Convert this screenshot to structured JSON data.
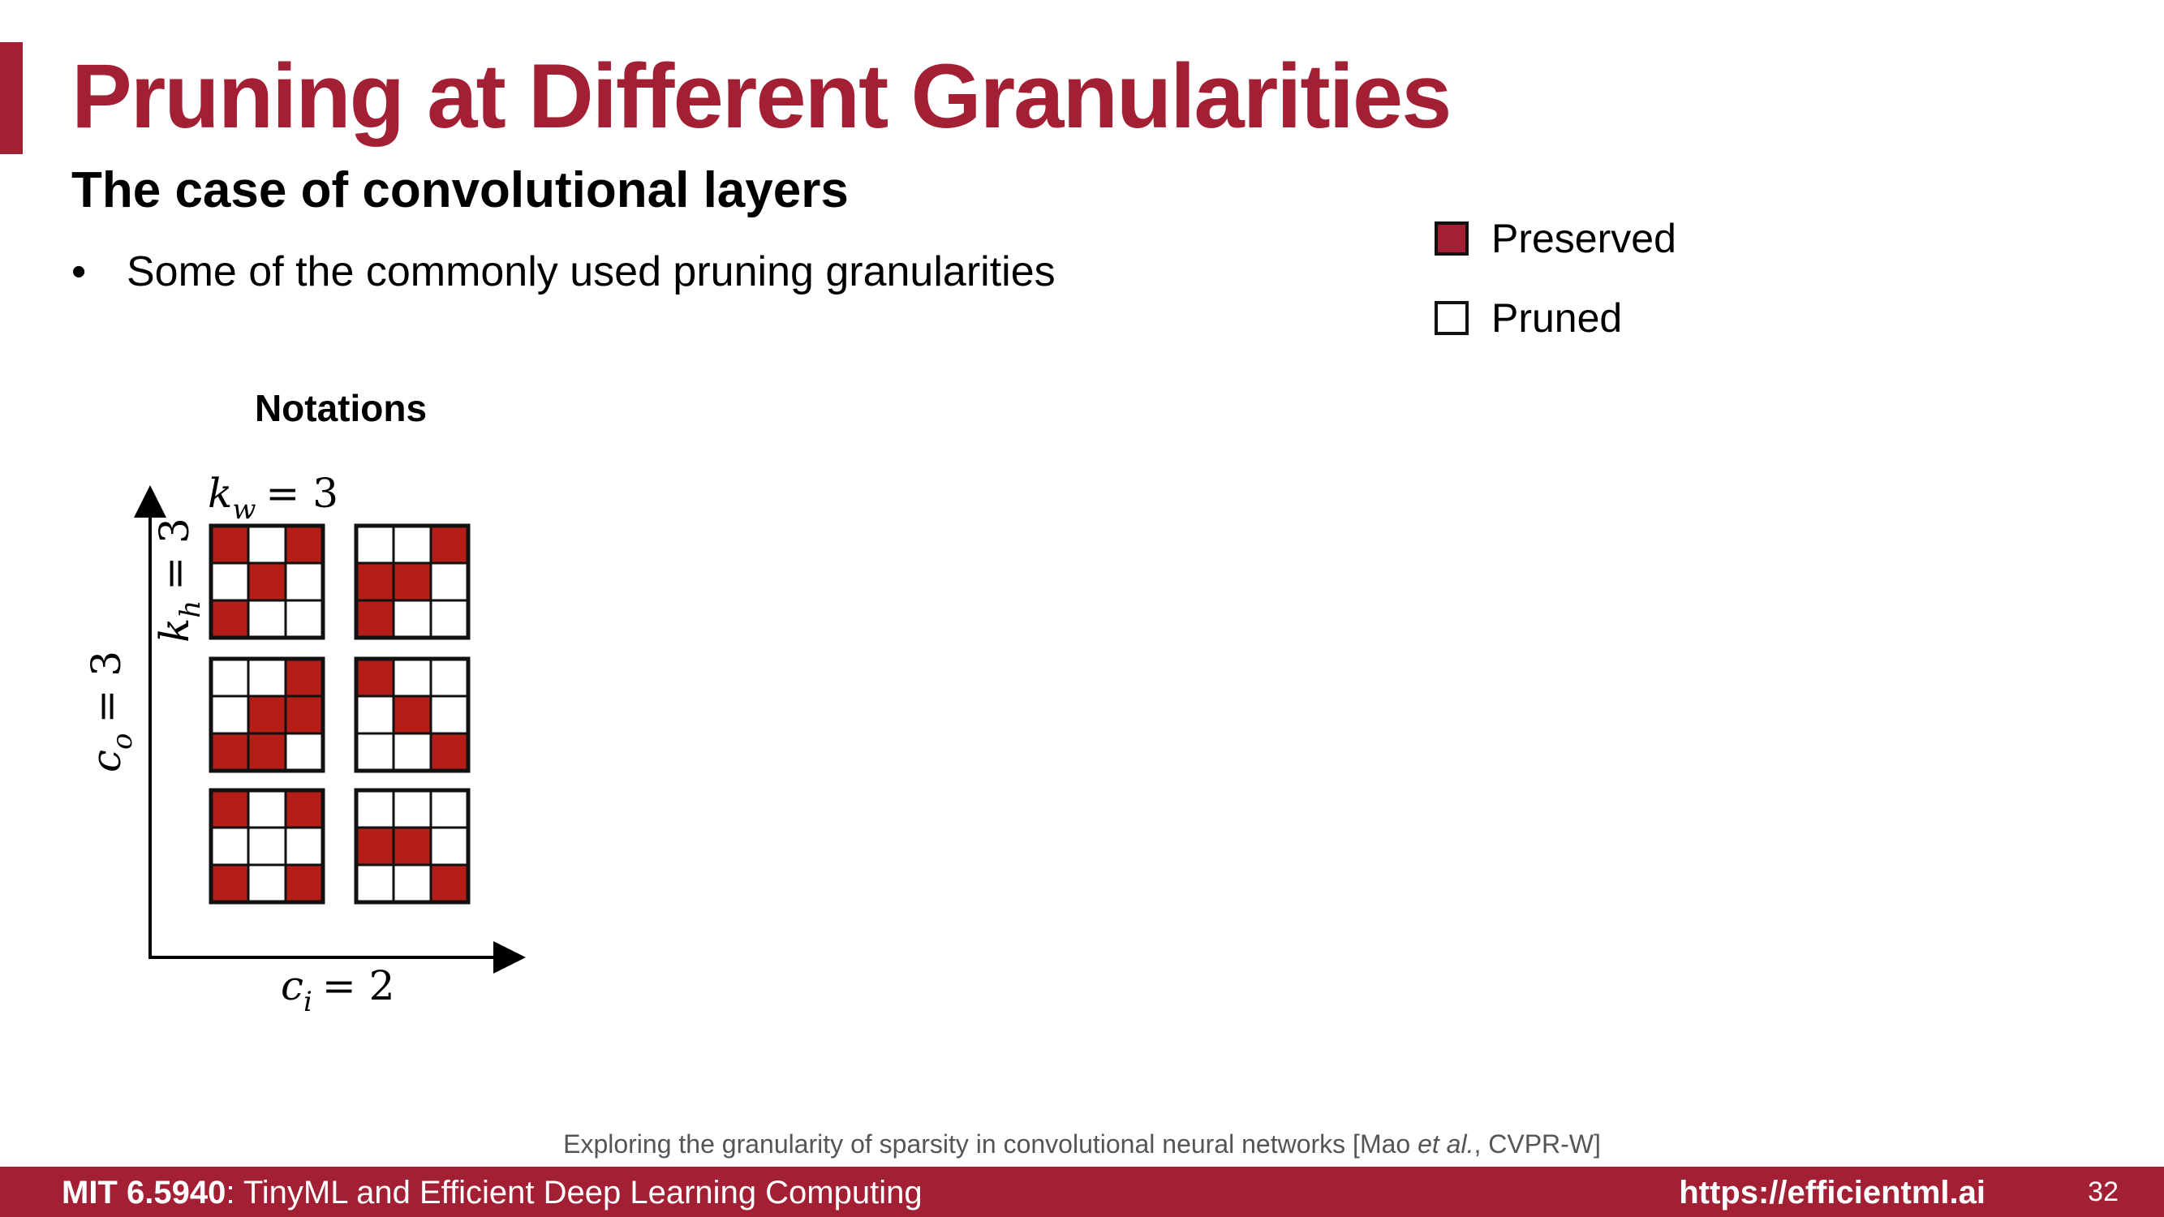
{
  "slide": {
    "title": "Pruning at Different Granularities",
    "subtitle": "The case of convolutional layers",
    "bullet": "Some of the commonly used pruning granularities",
    "bullet_marker": "•"
  },
  "legend": {
    "preserved": "Preserved",
    "pruned": "Pruned",
    "preserved_color": "#a31f34",
    "pruned_color": "#ffffff"
  },
  "notations": {
    "title": "Notations",
    "kw": {
      "var": "k",
      "sub": "w",
      "rest": "= 3"
    },
    "kh": {
      "var": "k",
      "sub": "h",
      "rest": "= 3"
    },
    "co": {
      "var": "c",
      "sub": "o",
      "rest": "= 3"
    },
    "ci": {
      "var": "c",
      "sub": "i",
      "rest": "= 2"
    },
    "cell_fill": "#b51e16",
    "kernels": [
      [
        [
          1,
          0,
          1
        ],
        [
          0,
          1,
          0
        ],
        [
          1,
          0,
          0
        ]
      ],
      [
        [
          0,
          0,
          1
        ],
        [
          1,
          1,
          0
        ],
        [
          1,
          0,
          0
        ]
      ],
      [
        [
          0,
          0,
          1
        ],
        [
          0,
          1,
          1
        ],
        [
          1,
          1,
          0
        ]
      ],
      [
        [
          1,
          0,
          0
        ],
        [
          0,
          1,
          0
        ],
        [
          0,
          0,
          1
        ]
      ],
      [
        [
          1,
          0,
          1
        ],
        [
          0,
          0,
          0
        ],
        [
          1,
          0,
          1
        ]
      ],
      [
        [
          0,
          0,
          0
        ],
        [
          1,
          1,
          0
        ],
        [
          0,
          0,
          1
        ]
      ]
    ]
  },
  "citation": {
    "prefix": "Exploring the granularity of sparsity in convolutional neural networks [Mao ",
    "italic": "et al.",
    "suffix": ", CVPR-W]"
  },
  "footer": {
    "course": "MIT 6.5940",
    "course_title": ": TinyML and Efficient Deep Learning Computing",
    "url": "https://efficientml.ai",
    "page": "32"
  }
}
